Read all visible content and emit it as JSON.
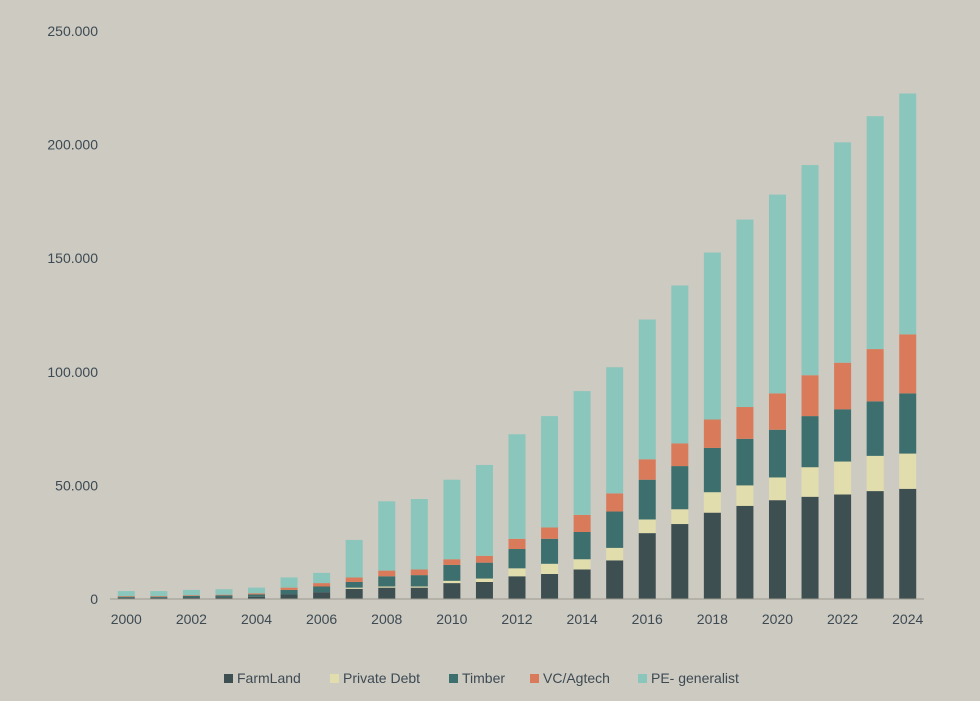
{
  "chart_data": {
    "type": "bar",
    "stacked": true,
    "categories": [
      "2000",
      "2001",
      "2002",
      "2003",
      "2004",
      "2005",
      "2006",
      "2007",
      "2008",
      "2009",
      "2010",
      "2011",
      "2012",
      "2013",
      "2014",
      "2015",
      "2016",
      "2017",
      "2018",
      "2019",
      "2020",
      "2021",
      "2022",
      "2023",
      "2024"
    ],
    "x_tick_labels": [
      "2000",
      "2002",
      "2004",
      "2006",
      "2008",
      "2010",
      "2012",
      "2014",
      "2016",
      "2018",
      "2020",
      "2022",
      "2024"
    ],
    "y_ticks": [
      0,
      50000,
      100000,
      150000,
      200000,
      250000
    ],
    "y_tick_labels": [
      "0",
      "50.000",
      "100.000",
      "150.000",
      "200.000",
      "250.000"
    ],
    "ylim": [
      0,
      250000
    ],
    "grid": false,
    "legend_position": "bottom",
    "series": [
      {
        "name": "FarmLand",
        "color": "#3e4f51",
        "values": [
          500,
          500,
          700,
          800,
          1000,
          2000,
          3000,
          4500,
          5000,
          5000,
          7000,
          7500,
          10000,
          11000,
          13000,
          17000,
          29000,
          33000,
          38000,
          41000,
          43500,
          45000,
          46000,
          47500,
          48500
        ]
      },
      {
        "name": "Private Debt",
        "color": "#e2ddad",
        "values": [
          0,
          0,
          0,
          0,
          0,
          0,
          0,
          500,
          500,
          500,
          1000,
          1500,
          3500,
          4500,
          4500,
          5500,
          6000,
          6500,
          9000,
          9000,
          10000,
          13000,
          14500,
          15500,
          15500
        ]
      },
      {
        "name": "Timber",
        "color": "#3c6f6d",
        "values": [
          500,
          500,
          700,
          800,
          1000,
          2000,
          2500,
          2500,
          4500,
          5000,
          7000,
          7000,
          8500,
          11000,
          12000,
          16000,
          17500,
          19000,
          19500,
          20500,
          21000,
          22500,
          23000,
          24000,
          26500
        ]
      },
      {
        "name": "VC/Agtech",
        "color": "#d97b5a",
        "values": [
          300,
          300,
          300,
          300,
          500,
          1000,
          1500,
          2000,
          2500,
          2500,
          2500,
          3000,
          4500,
          5000,
          7500,
          8000,
          9000,
          10000,
          12500,
          14000,
          16000,
          18000,
          20500,
          23000,
          26000
        ]
      },
      {
        "name": "PE- generalist",
        "color": "#8ac6bb",
        "values": [
          2200,
          2200,
          2300,
          2400,
          2500,
          4500,
          4500,
          16500,
          30500,
          31000,
          35000,
          40000,
          46000,
          49000,
          54500,
          55500,
          61500,
          69500,
          73500,
          82500,
          87500,
          92500,
          97000,
          102500,
          106000
        ]
      }
    ]
  }
}
